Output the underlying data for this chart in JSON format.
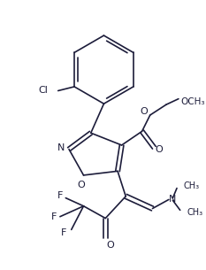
{
  "background_color": "#ffffff",
  "line_color": "#1c1c3a",
  "figsize": [
    2.33,
    3.05
  ],
  "dpi": 100,
  "xlim": [
    0,
    233
  ],
  "ylim": [
    0,
    305
  ]
}
